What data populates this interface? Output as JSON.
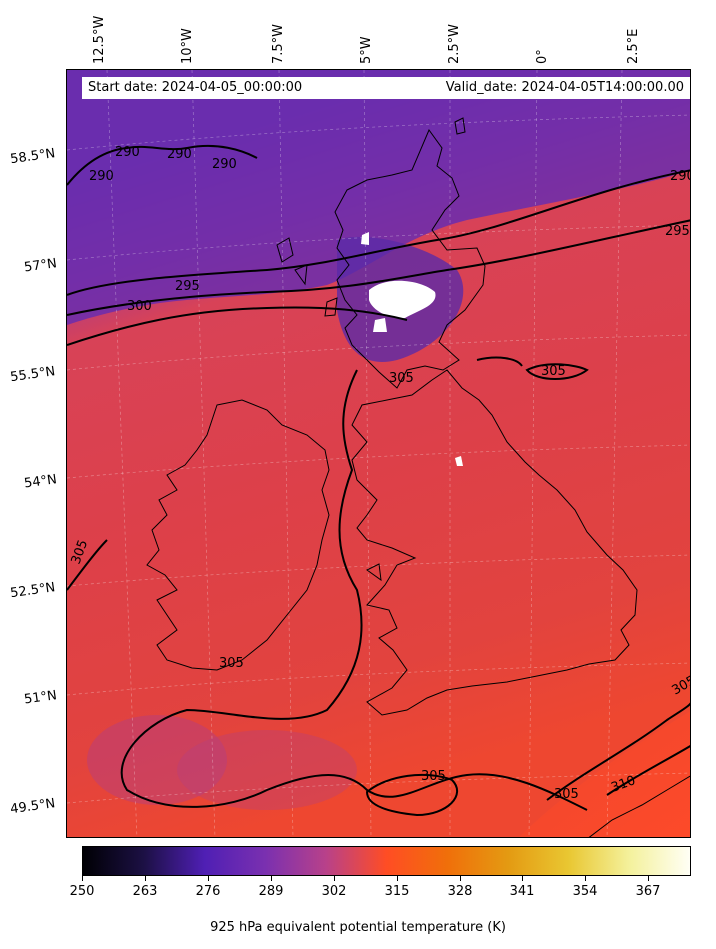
{
  "header": {
    "start_label": "Start date: 2024-04-05_00:00:00",
    "valid_label": "Valid_date: 2024-04-05T14:00:00.00"
  },
  "longitude_labels": [
    "12.5°W",
    "10°W",
    "7.5°W",
    "5°W",
    "2.5°W",
    "0°",
    "2.5°E"
  ],
  "latitude_labels": [
    "58.5°N",
    "57°N",
    "55.5°N",
    "54°N",
    "52.5°N",
    "51°N",
    "49.5°N"
  ],
  "contour_labels": [
    "290",
    "290",
    "290",
    "290",
    "290",
    "295",
    "295",
    "300",
    "305",
    "305",
    "305",
    "305",
    "305",
    "305",
    "305",
    "310"
  ],
  "colorbar": {
    "title": "925 hPa equivalent potential temperature (K)",
    "ticks": [
      "250",
      "263",
      "276",
      "289",
      "302",
      "315",
      "328",
      "341",
      "354",
      "367"
    ],
    "colors": [
      "#000004",
      "#1c1044",
      "#4f1fb4",
      "#7a30b0",
      "#b8418a",
      "#ff4d24",
      "#f06f0a",
      "#e49a12",
      "#e9c732",
      "#f4f19c",
      "#fffff5"
    ]
  }
}
